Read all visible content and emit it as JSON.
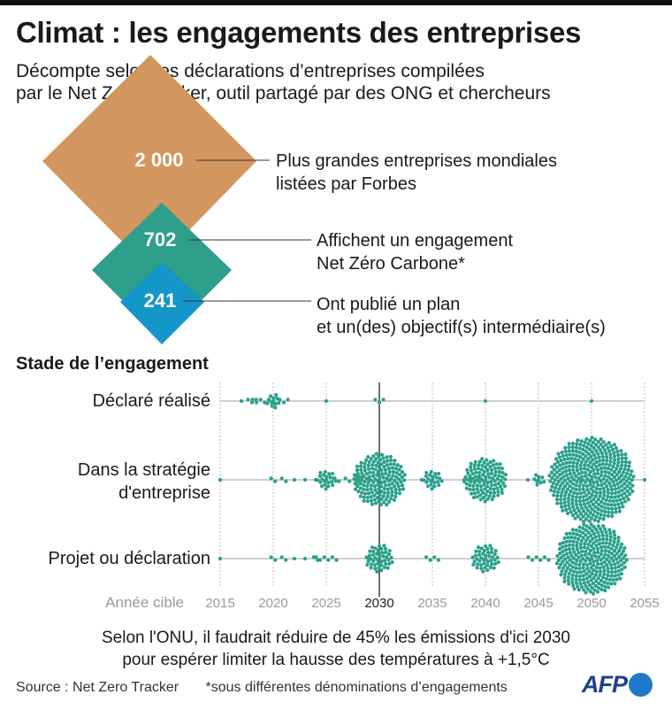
{
  "title": "Climat : les engagements des entreprises",
  "subtitle": {
    "line1": "Décompte selon les déclarations d’entreprises compilées",
    "line2": "par le Net Zero Tracker, outil partagé par des ONG et chercheurs"
  },
  "diamonds": [
    {
      "value": "2 000",
      "label1": "Plus grandes entreprises mondiales",
      "label2": "listées par Forbes",
      "color": "#d4965f"
    },
    {
      "value": "702",
      "label1": "Affichent un engagement",
      "label2": "Net Zéro Carbone*",
      "color": "#2d9f8a"
    },
    {
      "value": "241",
      "label1": "Ont publié un plan",
      "label2": "et un(des) objectif(s) intermédiaire(s)",
      "color": "#1596c8"
    }
  ],
  "section_title": "Stade de l’engagement",
  "chart_data": {
    "type": "scatter",
    "subtype": "beeswarm",
    "xlabel": "Année cible",
    "xlim": [
      2015,
      2055
    ],
    "x_ticks": [
      "2015",
      "2020",
      "2025",
      "2030",
      "2035",
      "2040",
      "2045",
      "2050",
      "2055"
    ],
    "highlight_year": 2030,
    "dot_color": "#2aa08a",
    "series": [
      {
        "name": "Déclaré réalisé",
        "label1": "Déclaré réalisé",
        "label2": "",
        "points": [
          [
            2017,
            1
          ],
          [
            2018,
            3
          ],
          [
            2019,
            6
          ],
          [
            2020,
            12
          ],
          [
            2021,
            3
          ],
          [
            2025,
            1
          ],
          [
            2030,
            3
          ],
          [
            2040,
            1
          ],
          [
            2050,
            1
          ]
        ]
      },
      {
        "name": "Dans la stratégie d'entreprise",
        "label1": "Dans la stratégie",
        "label2": "d'entreprise",
        "points": [
          [
            2015,
            1
          ],
          [
            2020,
            2
          ],
          [
            2021,
            2
          ],
          [
            2022,
            1
          ],
          [
            2023,
            1
          ],
          [
            2024,
            1
          ],
          [
            2025,
            22
          ],
          [
            2026,
            2
          ],
          [
            2027,
            2
          ],
          [
            2028,
            8
          ],
          [
            2029,
            1
          ],
          [
            2030,
            160
          ],
          [
            2031,
            1
          ],
          [
            2034,
            1
          ],
          [
            2035,
            22
          ],
          [
            2038,
            1
          ],
          [
            2039,
            3
          ],
          [
            2040,
            110
          ],
          [
            2044,
            1
          ],
          [
            2045,
            9
          ],
          [
            2049,
            1
          ],
          [
            2050,
            420
          ],
          [
            2055,
            1
          ]
        ]
      },
      {
        "name": "Projet ou déclaration",
        "label1": "Projet ou déclaration",
        "label2": "",
        "points": [
          [
            2015,
            1
          ],
          [
            2020,
            2
          ],
          [
            2021,
            2
          ],
          [
            2022,
            1
          ],
          [
            2023,
            1
          ],
          [
            2024,
            2
          ],
          [
            2025,
            6
          ],
          [
            2029,
            1
          ],
          [
            2030,
            45
          ],
          [
            2035,
            4
          ],
          [
            2040,
            45
          ],
          [
            2045,
            6
          ],
          [
            2050,
            290
          ]
        ]
      }
    ]
  },
  "note": {
    "line1": "Selon l'ONU, il faudrait réduire de 45% les émissions d'ici 2030",
    "line2": "pour espérer limiter la hausse des températures à +1,5°C"
  },
  "footer": {
    "source": "Source : Net Zero Tracker",
    "footnote": "*sous différentes dénominations d’engagements"
  },
  "logo": "AFP"
}
